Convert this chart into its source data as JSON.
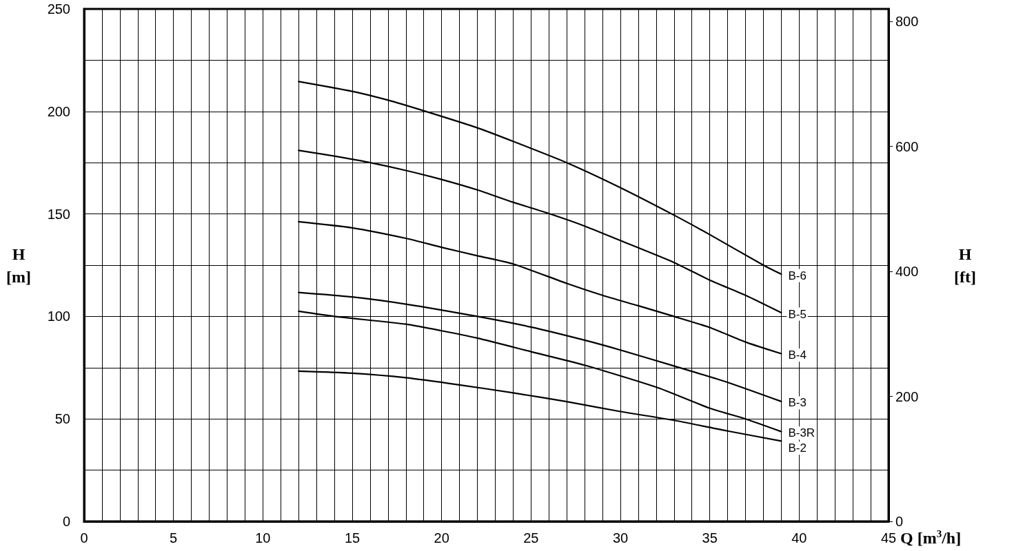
{
  "chart_data": {
    "type": "line",
    "xlabel": "Q [m$^{3}$/h]",
    "ylabel": "H [m]",
    "y2label": "H [ft]",
    "xlim": [
      0,
      45
    ],
    "xticks": [
      0,
      {
        "value": 1,
        "label": null
      },
      {
        "value": 2,
        "label": null
      },
      {
        "value": 3,
        "label": null
      },
      {
        "value": 4,
        "label": null
      },
      5,
      {
        "value": 6,
        "label": null
      },
      {
        "value": 7,
        "label": null
      },
      {
        "value": 8,
        "label": null
      },
      {
        "value": 9,
        "label": null
      },
      10,
      {
        "value": 11,
        "label": null
      },
      {
        "value": 12,
        "label": null
      },
      {
        "value": 13,
        "label": null
      },
      {
        "value": 14,
        "label": null
      },
      15,
      {
        "value": 16,
        "label": null
      },
      {
        "value": 17,
        "label": null
      },
      {
        "value": 18,
        "label": null
      },
      {
        "value": 19,
        "label": null
      },
      20,
      {
        "value": 21,
        "label": null
      },
      {
        "value": 22,
        "label": null
      },
      {
        "value": 23,
        "label": null
      },
      {
        "value": 24,
        "label": null
      },
      25,
      {
        "value": 26,
        "label": null
      },
      {
        "value": 27,
        "label": null
      },
      {
        "value": 28,
        "label": null
      },
      {
        "value": 29,
        "label": null
      },
      30,
      {
        "value": 31,
        "label": null
      },
      {
        "value": 32,
        "label": null
      },
      {
        "value": 33,
        "label": null
      },
      {
        "value": 34,
        "label": null
      },
      35,
      {
        "value": 36,
        "label": null
      },
      {
        "value": 37,
        "label": null
      },
      {
        "value": 38,
        "label": null
      },
      {
        "value": 39,
        "label": null
      },
      40,
      {
        "value": 41,
        "label": null
      },
      {
        "value": 42,
        "label": null
      },
      {
        "value": 43,
        "label": null
      },
      {
        "value": 44,
        "label": null
      },
      45
    ],
    "ylim": [
      0,
      250
    ],
    "yticks": [
      0,
      {
        "value": 25,
        "label": null
      },
      50,
      {
        "value": 75,
        "label": null
      },
      100,
      {
        "value": 125,
        "label": null
      },
      150,
      {
        "value": 175,
        "label": null
      },
      200,
      {
        "value": 225,
        "label": null
      },
      250
    ],
    "y2lim": [
      0,
      820
    ],
    "y2ticks": [
      0,
      200,
      400,
      600,
      800
    ],
    "grid": true,
    "marker": "none",
    "line_style": "solid",
    "series": [
      {
        "name": "B-6",
        "color": "#000000",
        "x": [
          12,
          15,
          17,
          19,
          22,
          24,
          27,
          30,
          33,
          35,
          38,
          39
        ],
        "values": [
          214.6,
          209.8,
          205.5,
          200.3,
          192,
          185.4,
          175,
          162.8,
          149.4,
          139.9,
          125,
          120.6
        ]
      },
      {
        "name": "B-5",
        "color": "#000000",
        "x": [
          12,
          14,
          16,
          18,
          20,
          22,
          24,
          26,
          28,
          30,
          33,
          35,
          37,
          39
        ],
        "values": [
          181,
          178.2,
          175,
          171.2,
          166.8,
          161.7,
          155.7,
          150.2,
          144.1,
          137,
          126.3,
          117.7,
          110.3,
          101.8
        ]
      },
      {
        "name": "B-4",
        "color": "#000000",
        "x": [
          12,
          15,
          18,
          20,
          22,
          24,
          27,
          29,
          31,
          33,
          35,
          37,
          39
        ],
        "values": [
          146.2,
          143.2,
          138.1,
          133.7,
          129.6,
          125.6,
          116.1,
          110.3,
          105.2,
          100,
          94.6,
          87.5,
          81.8
        ]
      },
      {
        "name": "B-3",
        "color": "#000000",
        "x": [
          12,
          15,
          18,
          22,
          25,
          28,
          30,
          33,
          36,
          39
        ],
        "values": [
          111.7,
          109.5,
          106,
          100,
          94.8,
          88.4,
          83.6,
          75.8,
          67.8,
          58.5
        ]
      },
      {
        "name": "B-3R",
        "color": "#000000",
        "x": [
          12,
          14,
          18,
          20,
          22,
          25,
          28,
          32,
          35,
          37,
          39
        ],
        "values": [
          102.5,
          100,
          96.2,
          93,
          89.4,
          82.8,
          76.2,
          65.5,
          55.2,
          50,
          43.8
        ]
      },
      {
        "name": "B-2",
        "color": "#000000",
        "x": [
          12,
          15,
          18,
          21,
          24,
          27,
          30,
          33,
          36,
          39
        ],
        "values": [
          73.3,
          72.3,
          70.1,
          66.6,
          62.7,
          58.4,
          53.6,
          49.3,
          44.1,
          39.2
        ]
      }
    ]
  }
}
